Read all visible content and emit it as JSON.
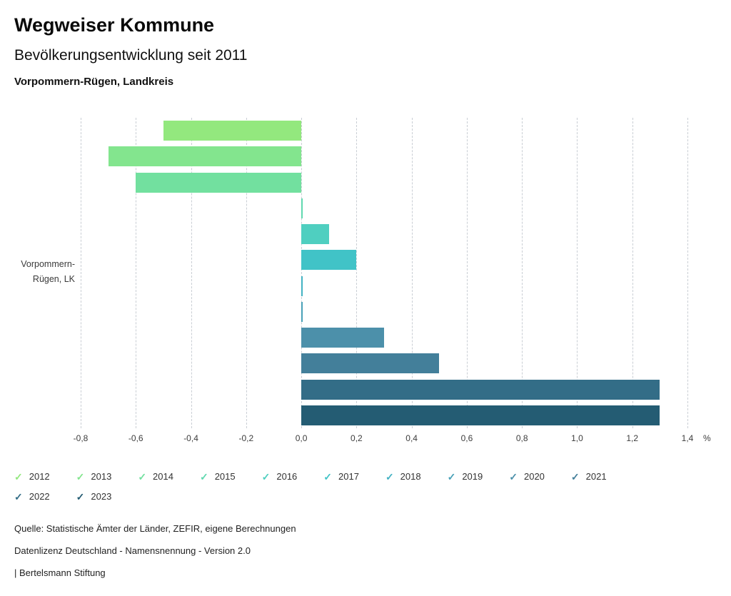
{
  "header": {
    "title": "Wegweiser Kommune",
    "subtitle": "Bevölkerungsentwicklung seit 2011",
    "region": "Vorpommern-Rügen, Landkreis"
  },
  "chart_data": {
    "type": "bar",
    "orientation": "horizontal",
    "title": "Bevölkerungsentwicklung seit 2011",
    "category": "Vorpommern-Rügen, LK",
    "category_lines": [
      "Vorpommern-",
      "Rügen, LK"
    ],
    "unit": "%",
    "xlim": [
      -0.8,
      1.4
    ],
    "grid": "dashed-vertical",
    "legend_position": "bottom",
    "ticks": [
      -0.8,
      -0.6,
      -0.4,
      -0.2,
      0.0,
      0.2,
      0.4,
      0.6,
      0.8,
      1.0,
      1.2,
      1.4
    ],
    "tick_labels": [
      "-0,8",
      "-0,6",
      "-0,4",
      "-0,2",
      "0,0",
      "0,2",
      "0,4",
      "0,6",
      "0,8",
      "1,0",
      "1,2",
      "1,4"
    ],
    "series": [
      {
        "year": "2012",
        "value": -0.5,
        "color": "#93e87e"
      },
      {
        "year": "2013",
        "value": -0.7,
        "color": "#83e58e"
      },
      {
        "year": "2014",
        "value": -0.6,
        "color": "#72e09f"
      },
      {
        "year": "2015",
        "value": 0.0,
        "color": "#60d8af"
      },
      {
        "year": "2016",
        "value": 0.1,
        "color": "#4fcfc0"
      },
      {
        "year": "2017",
        "value": 0.2,
        "color": "#41c3c7"
      },
      {
        "year": "2018",
        "value": 0.0,
        "color": "#43b2c3"
      },
      {
        "year": "2019",
        "value": 0.0,
        "color": "#49a1b8"
      },
      {
        "year": "2020",
        "value": 0.3,
        "color": "#4c90aa"
      },
      {
        "year": "2021",
        "value": 0.5,
        "color": "#437f9a"
      },
      {
        "year": "2022",
        "value": 1.3,
        "color": "#336d87"
      },
      {
        "year": "2023",
        "value": 1.3,
        "color": "#245c73"
      }
    ]
  },
  "legend": {
    "items": [
      {
        "label": "2012",
        "color": "#93e87e"
      },
      {
        "label": "2013",
        "color": "#83e58e"
      },
      {
        "label": "2014",
        "color": "#72e09f"
      },
      {
        "label": "2015",
        "color": "#60d8af"
      },
      {
        "label": "2016",
        "color": "#4fcfc0"
      },
      {
        "label": "2017",
        "color": "#41c3c7"
      },
      {
        "label": "2018",
        "color": "#43b2c3"
      },
      {
        "label": "2019",
        "color": "#49a1b8"
      },
      {
        "label": "2020",
        "color": "#4c90aa"
      },
      {
        "label": "2021",
        "color": "#437f9a"
      },
      {
        "label": "2022",
        "color": "#336d87"
      },
      {
        "label": "2023",
        "color": "#245c73"
      }
    ]
  },
  "footer": {
    "source": "Quelle: Statistische Ämter der Länder, ZEFIR, eigene Berechnungen",
    "license": "Datenlizenz Deutschland - Namensnennung - Version 2.0",
    "attribution": "| Bertelsmann Stiftung"
  }
}
